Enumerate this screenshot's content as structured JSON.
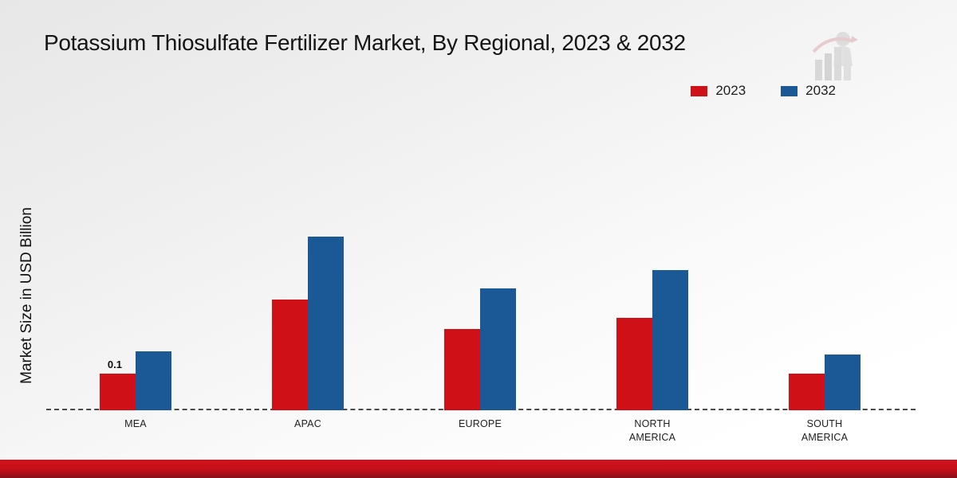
{
  "chart_data": {
    "type": "bar",
    "title": "Potassium Thiosulfate Fertilizer Market, By Regional, 2023 & 2032",
    "ylabel": "Market Size in USD Billion",
    "xlabel": "",
    "categories": [
      "MEA",
      "APAC",
      "EUROPE",
      "NORTH AMERICA",
      "SOUTH AMERICA"
    ],
    "series": [
      {
        "name": "2023",
        "color": "#cf1016",
        "values": [
          0.1,
          0.3,
          0.22,
          0.25,
          0.1
        ]
      },
      {
        "name": "2032",
        "color": "#1a5896",
        "values": [
          0.16,
          0.47,
          0.33,
          0.38,
          0.15
        ]
      }
    ],
    "ylim": [
      0,
      0.5
    ],
    "grid": false,
    "legend_position": "top-right",
    "baseline_style": "dashed",
    "annotations": [
      {
        "series": "2023",
        "category": "MEA",
        "text": "0.1"
      }
    ]
  },
  "branding": {
    "watermark_icon": "mrf-logo-icon",
    "footer_color": "#c30f19"
  }
}
